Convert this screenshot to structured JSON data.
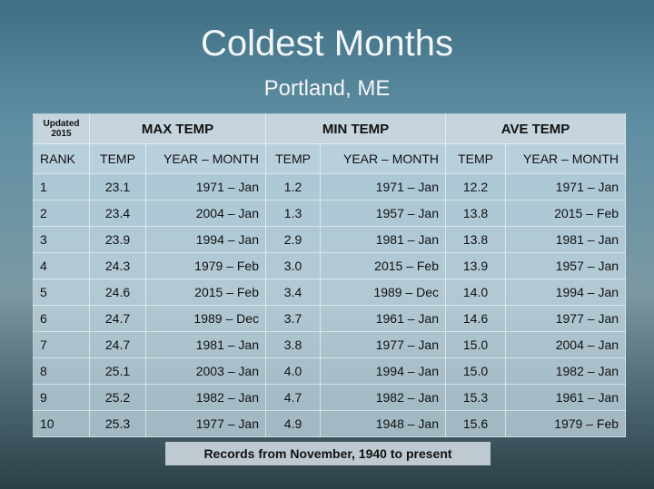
{
  "header": {
    "title": "Coldest Months",
    "subtitle": "Portland, ME"
  },
  "table": {
    "corner": "Updated 2015",
    "groups": [
      "MAX TEMP",
      "MIN TEMP",
      "AVE TEMP"
    ],
    "columns": [
      "RANK",
      "TEMP",
      "YEAR – MONTH",
      "TEMP",
      "YEAR – MONTH",
      "TEMP",
      "YEAR – MONTH"
    ],
    "rows": [
      [
        "1",
        "23.1",
        "1971 – Jan",
        "1.2",
        "1971 – Jan",
        "12.2",
        "1971 – Jan"
      ],
      [
        "2",
        "23.4",
        "2004 – Jan",
        "1.3",
        "1957 – Jan",
        "13.8",
        "2015 – Feb"
      ],
      [
        "3",
        "23.9",
        "1994 – Jan",
        "2.9",
        "1981 – Jan",
        "13.8",
        "1981 – Jan"
      ],
      [
        "4",
        "24.3",
        "1979 – Feb",
        "3.0",
        "2015 – Feb",
        "13.9",
        "1957 – Jan"
      ],
      [
        "5",
        "24.6",
        "2015 – Feb",
        "3.4",
        "1989 – Dec",
        "14.0",
        "1994 – Jan"
      ],
      [
        "6",
        "24.7",
        "1989 – Dec",
        "3.7",
        "1961 – Jan",
        "14.6",
        "1977 – Jan"
      ],
      [
        "7",
        "24.7",
        "1981 – Jan",
        "3.8",
        "1977 – Jan",
        "15.0",
        "2004 – Jan"
      ],
      [
        "8",
        "25.1",
        "2003 – Jan",
        "4.0",
        "1994 – Jan",
        "15.0",
        "1982 – Jan"
      ],
      [
        "9",
        "25.2",
        "1982 – Jan",
        "4.7",
        "1982 – Jan",
        "15.3",
        "1961 – Jan"
      ],
      [
        "10",
        "25.3",
        "1977 – Jan",
        "4.9",
        "1948 – Jan",
        "15.6",
        "1979 – Feb"
      ]
    ]
  },
  "footer": "Records from November, 1940 to present"
}
